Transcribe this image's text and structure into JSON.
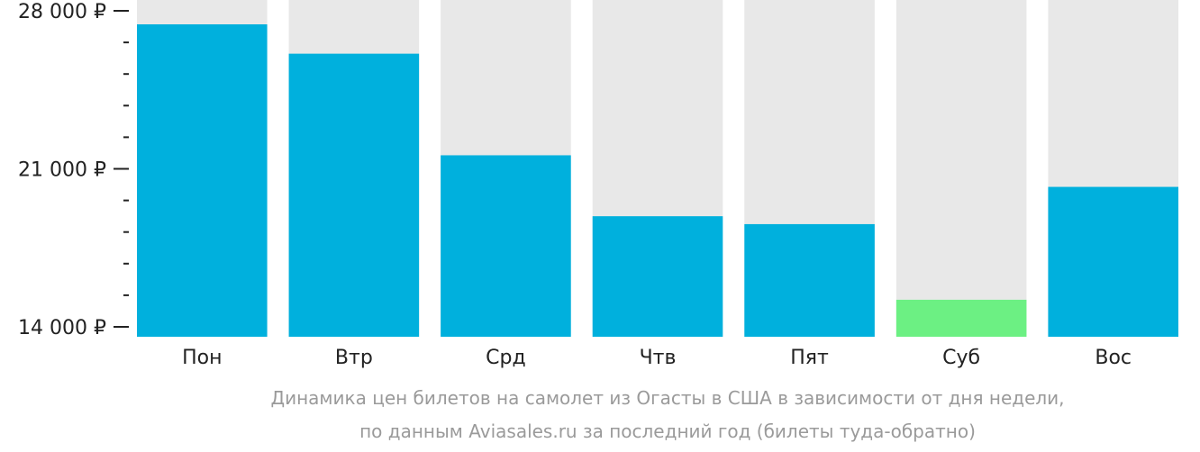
{
  "chart_data": {
    "type": "bar",
    "categories": [
      "Пон",
      "Втр",
      "Срд",
      "Чтв",
      "Пят",
      "Суб",
      "Вос"
    ],
    "values": [
      27400,
      26100,
      21600,
      18900,
      18550,
      15200,
      20200
    ],
    "ylim": [
      14000,
      28000
    ],
    "yticks": [
      {
        "value": 14000,
        "label": "14 000 ₽"
      },
      {
        "value": 21000,
        "label": "21 000 ₽"
      },
      {
        "value": 28000,
        "label": "28 000 ₽"
      }
    ],
    "minor_tick_step": 1400,
    "colors": {
      "bar": "#00b0dd",
      "bar_lowest": "#6cf083",
      "bar_background": "#e8e8e8",
      "axis": "#222222"
    },
    "caption_lines": [
      "Динамика цен билетов на самолет из Огасты в США в зависимости от дня недели,",
      "по данным Aviasales.ru за последний год (билеты туда-обратно)"
    ]
  }
}
